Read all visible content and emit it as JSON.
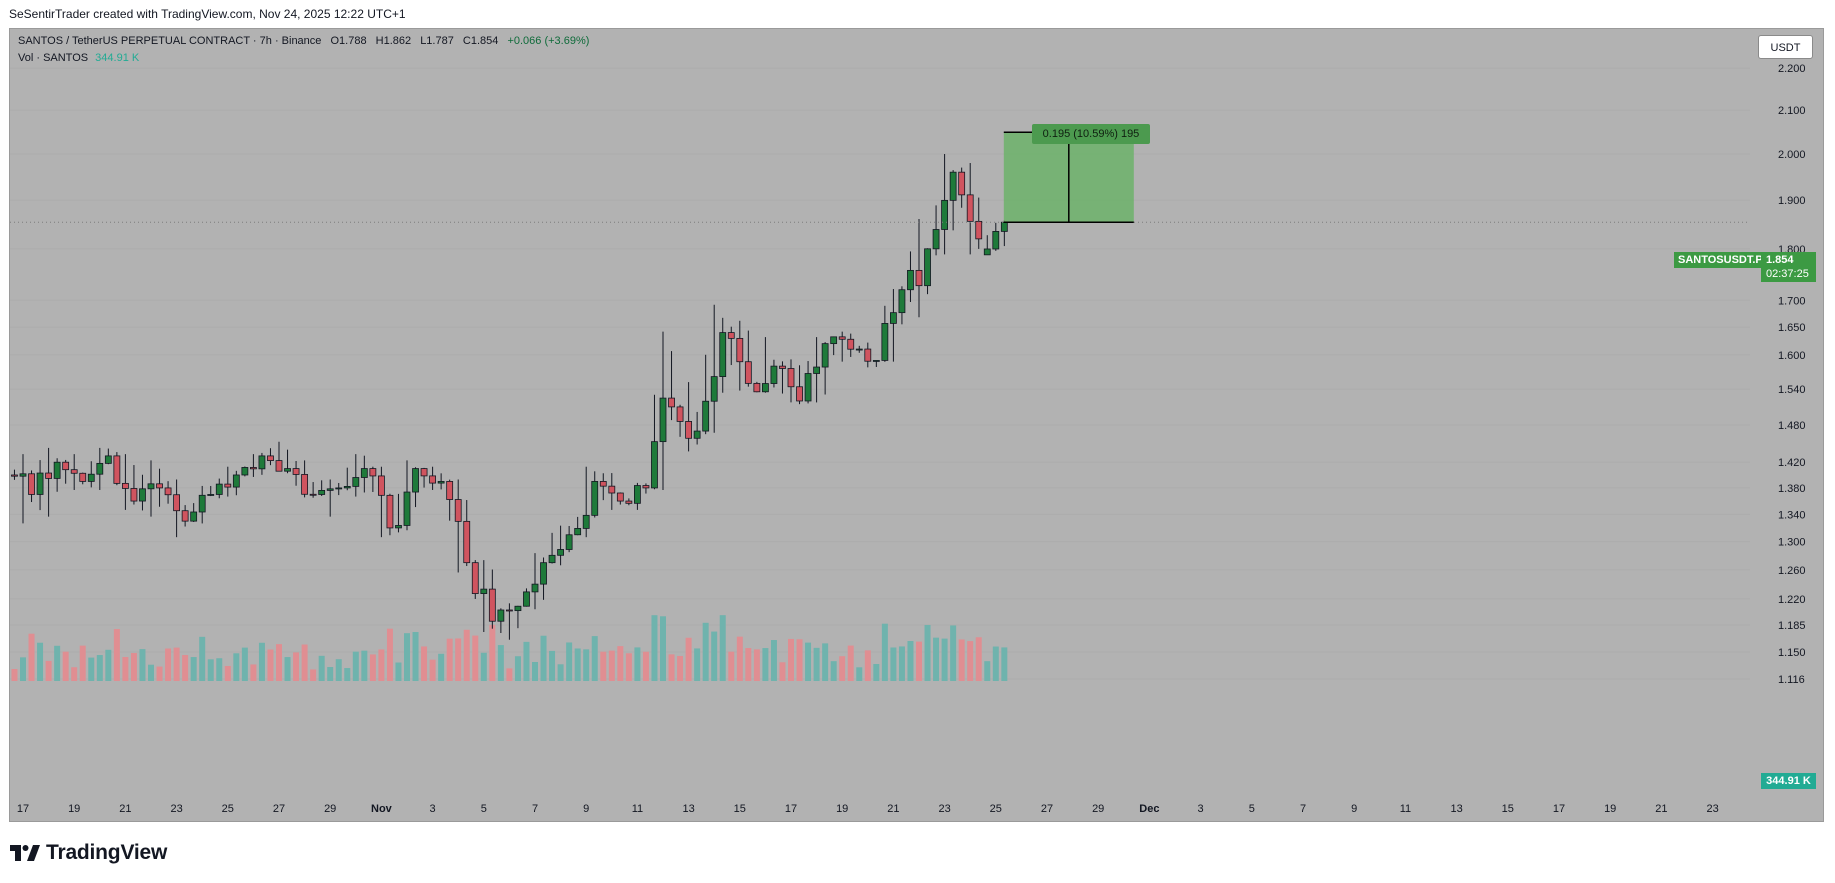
{
  "header": {
    "attribution": "SeSentirTrader created with TradingView.com, Nov 24, 2025 12:22 UTC+1"
  },
  "legend": {
    "title": "SANTOS / TetherUS PERPETUAL CONTRACT · 7h · Binance",
    "open": "O1.788",
    "high": "H1.862",
    "low": "L1.787",
    "close": "C1.854",
    "change": "+0.066 (+3.69%)",
    "volume_label": "Vol · SANTOS",
    "volume_value": "344.91 K"
  },
  "currency": "USDT",
  "symbol_tag": "SANTOSUSDT.P",
  "last_price": "1.854",
  "countdown": "02:37:25",
  "volume_tag": "344.91 K",
  "measure": {
    "label": "0.195 (10.59%) 195",
    "from_price": 1.854,
    "to_price": 2.049,
    "start_date": "Nov 24",
    "end_date": "Nov 29"
  },
  "footer": {
    "logo_text": "TradingView"
  },
  "colors": {
    "up": "#1e7a3a",
    "down": "#d0545f",
    "volume_up": "#6fb3ad",
    "volume_down": "#e08e92",
    "measure_fill": "#6cb26a",
    "background": "#b2b2b2"
  },
  "chart_data": {
    "type": "candlestick",
    "symbol": "SANTOS / TetherUS PERPETUAL CONTRACT",
    "interval": "7h",
    "exchange": "Binance",
    "y_scale": "log",
    "ylim": [
      1.116,
      2.26
    ],
    "price_ticks": [
      "2.200",
      "2.100",
      "2.000",
      "1.900",
      "1.800",
      "1.700",
      "1.650",
      "1.600",
      "1.540",
      "1.480",
      "1.420",
      "1.380",
      "1.340",
      "1.300",
      "1.260",
      "1.220",
      "1.185",
      "1.150",
      "1.116"
    ],
    "x_ticks": [
      "17",
      "19",
      "21",
      "23",
      "25",
      "27",
      "29",
      "Nov",
      "3",
      "5",
      "7",
      "9",
      "11",
      "13",
      "15",
      "17",
      "19",
      "21",
      "23",
      "25",
      "27",
      "29",
      "Dec",
      "3",
      "5",
      "7",
      "9",
      "11",
      "13",
      "15",
      "17",
      "19",
      "21",
      "23"
    ],
    "approx_daily_ohlc": [
      {
        "date": "Oct 17",
        "o": 1.4,
        "h": 1.44,
        "l": 1.32,
        "c": 1.37
      },
      {
        "date": "Oct 18",
        "o": 1.37,
        "h": 1.45,
        "l": 1.33,
        "c": 1.42
      },
      {
        "date": "Oct 19",
        "o": 1.42,
        "h": 1.44,
        "l": 1.37,
        "c": 1.39
      },
      {
        "date": "Oct 20",
        "o": 1.39,
        "h": 1.45,
        "l": 1.37,
        "c": 1.43
      },
      {
        "date": "Oct 21",
        "o": 1.43,
        "h": 1.44,
        "l": 1.34,
        "c": 1.36
      },
      {
        "date": "Oct 22",
        "o": 1.36,
        "h": 1.43,
        "l": 1.33,
        "c": 1.38
      },
      {
        "date": "Oct 23",
        "o": 1.38,
        "h": 1.4,
        "l": 1.3,
        "c": 1.33
      },
      {
        "date": "Oct 24",
        "o": 1.33,
        "h": 1.39,
        "l": 1.32,
        "c": 1.37
      },
      {
        "date": "Oct 25",
        "o": 1.37,
        "h": 1.42,
        "l": 1.36,
        "c": 1.4
      },
      {
        "date": "Oct 26",
        "o": 1.4,
        "h": 1.44,
        "l": 1.39,
        "c": 1.43
      },
      {
        "date": "Oct 27",
        "o": 1.43,
        "h": 1.46,
        "l": 1.4,
        "c": 1.41
      },
      {
        "date": "Oct 28",
        "o": 1.41,
        "h": 1.43,
        "l": 1.36,
        "c": 1.37
      },
      {
        "date": "Oct 29",
        "o": 1.37,
        "h": 1.4,
        "l": 1.33,
        "c": 1.38
      },
      {
        "date": "Oct 30",
        "o": 1.38,
        "h": 1.44,
        "l": 1.36,
        "c": 1.41
      },
      {
        "date": "Oct 31",
        "o": 1.41,
        "h": 1.42,
        "l": 1.3,
        "c": 1.32
      },
      {
        "date": "Nov 1",
        "o": 1.32,
        "h": 1.43,
        "l": 1.31,
        "c": 1.41
      },
      {
        "date": "Nov 2",
        "o": 1.41,
        "h": 1.42,
        "l": 1.37,
        "c": 1.39
      },
      {
        "date": "Nov 3",
        "o": 1.39,
        "h": 1.4,
        "l": 1.25,
        "c": 1.27
      },
      {
        "date": "Nov 4",
        "o": 1.27,
        "h": 1.28,
        "l": 1.17,
        "c": 1.19
      },
      {
        "date": "Nov 5",
        "o": 1.19,
        "h": 1.22,
        "l": 1.16,
        "c": 1.21
      },
      {
        "date": "Nov 6",
        "o": 1.21,
        "h": 1.29,
        "l": 1.2,
        "c": 1.27
      },
      {
        "date": "Nov 7",
        "o": 1.27,
        "h": 1.33,
        "l": 1.26,
        "c": 1.31
      },
      {
        "date": "Nov 8",
        "o": 1.31,
        "h": 1.42,
        "l": 1.3,
        "c": 1.39
      },
      {
        "date": "Nov 9",
        "o": 1.39,
        "h": 1.41,
        "l": 1.34,
        "c": 1.36
      },
      {
        "date": "Nov 10",
        "o": 1.36,
        "h": 1.39,
        "l": 1.34,
        "c": 1.38
      },
      {
        "date": "Nov 11",
        "o": 1.38,
        "h": 1.65,
        "l": 1.37,
        "c": 1.51
      },
      {
        "date": "Nov 12",
        "o": 1.51,
        "h": 1.56,
        "l": 1.43,
        "c": 1.47
      },
      {
        "date": "Nov 13",
        "o": 1.47,
        "h": 1.7,
        "l": 1.46,
        "c": 1.64
      },
      {
        "date": "Nov 14",
        "o": 1.64,
        "h": 1.67,
        "l": 1.53,
        "c": 1.55
      },
      {
        "date": "Nov 15",
        "o": 1.55,
        "h": 1.64,
        "l": 1.53,
        "c": 1.58
      },
      {
        "date": "Nov 16",
        "o": 1.58,
        "h": 1.6,
        "l": 1.51,
        "c": 1.52
      },
      {
        "date": "Nov 17",
        "o": 1.52,
        "h": 1.64,
        "l": 1.51,
        "c": 1.62
      },
      {
        "date": "Nov 18",
        "o": 1.62,
        "h": 1.65,
        "l": 1.58,
        "c": 1.61
      },
      {
        "date": "Nov 19",
        "o": 1.61,
        "h": 1.63,
        "l": 1.57,
        "c": 1.59
      },
      {
        "date": "Nov 20",
        "o": 1.59,
        "h": 1.73,
        "l": 1.58,
        "c": 1.72
      },
      {
        "date": "Nov 21",
        "o": 1.72,
        "h": 1.87,
        "l": 1.66,
        "c": 1.8
      },
      {
        "date": "Nov 22",
        "o": 1.8,
        "h": 2.01,
        "l": 1.78,
        "c": 1.96
      },
      {
        "date": "Nov 23",
        "o": 1.96,
        "h": 1.99,
        "l": 1.78,
        "c": 1.82
      },
      {
        "date": "Nov 24",
        "o": 1.788,
        "h": 1.862,
        "l": 1.787,
        "c": 1.854
      }
    ]
  }
}
